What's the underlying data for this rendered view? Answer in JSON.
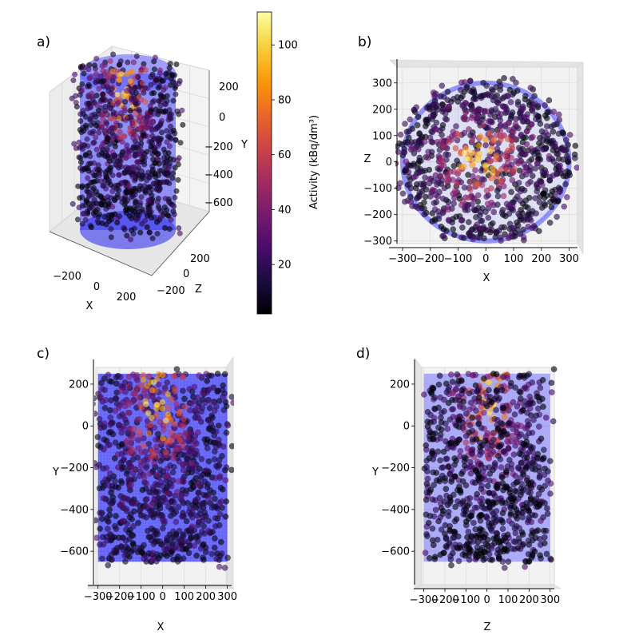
{
  "colors": {
    "cylinder": "#2f2fff",
    "pane": "#f2f2f2",
    "grid": "#dcdcdc",
    "colormap": [
      "#000004",
      "#1b0c41",
      "#4a0c6b",
      "#781c6d",
      "#a52c60",
      "#cf4446",
      "#ed6925",
      "#fb9b06",
      "#f7d13d",
      "#fcffa4"
    ]
  },
  "colorbar": {
    "label": "Activity (kBq/dm³)",
    "range": [
      2,
      112
    ],
    "ticks": [
      "20",
      "40",
      "60",
      "80",
      "100"
    ],
    "tick_values": [
      20,
      40,
      60,
      80,
      100
    ]
  },
  "chart_data": [
    {
      "type": "scatter",
      "panel": "a)",
      "view": "3d-perspective",
      "xlabel": "X",
      "ylabel": "Y",
      "zlabel": "Z",
      "x_ticks": [
        "−200",
        "0",
        "200"
      ],
      "y_ticks": [
        "200",
        "0",
        "−200",
        "−400",
        "−600"
      ],
      "z_ticks": [
        "200",
        "0",
        "−200"
      ]
    },
    {
      "type": "scatter",
      "panel": "b)",
      "view": "projection X–Z",
      "xlabel": "X",
      "ylabel": "Z",
      "xlim": [
        -320,
        330
      ],
      "ylim": [
        -310,
        360
      ],
      "x_ticks": [
        "−300",
        "−200",
        "−100",
        "0",
        "100",
        "200",
        "300"
      ],
      "x_tick_values": [
        -300,
        -200,
        -100,
        0,
        100,
        200,
        300
      ],
      "y_ticks": [
        "300",
        "200",
        "100",
        "0",
        "−100",
        "−200",
        "−300"
      ],
      "y_tick_values": [
        300,
        200,
        100,
        0,
        -100,
        -200,
        -300
      ],
      "cylinder_radius": 300
    },
    {
      "type": "scatter",
      "panel": "c)",
      "view": "projection X–Y",
      "xlabel": "X",
      "ylabel": "Y",
      "xlim": [
        -310,
        320
      ],
      "ylim": [
        -760,
        280
      ],
      "x_ticks": [
        "−300",
        "−200",
        "−100",
        "0",
        "100",
        "200",
        "300"
      ],
      "x_tick_values": [
        -300,
        -200,
        -100,
        0,
        100,
        200,
        300
      ],
      "y_ticks": [
        "200",
        "0",
        "−200",
        "−400",
        "−600"
      ],
      "y_tick_values": [
        200,
        0,
        -200,
        -400,
        -600
      ],
      "cylinder_x": [
        -300,
        300
      ],
      "cylinder_y": [
        -650,
        250
      ]
    },
    {
      "type": "scatter",
      "panel": "d)",
      "view": "projection Z–Y",
      "xlabel": "Z",
      "ylabel": "Y",
      "xlim": [
        -310,
        320
      ],
      "ylim": [
        -760,
        280
      ],
      "x_ticks": [
        "−300",
        "−200",
        "−100",
        "0",
        "100",
        "200",
        "300"
      ],
      "x_tick_values": [
        -300,
        -200,
        -100,
        0,
        100,
        200,
        300
      ],
      "y_ticks": [
        "200",
        "0",
        "−200",
        "−400",
        "−600"
      ],
      "y_tick_values": [
        200,
        0,
        -200,
        -400,
        -600
      ],
      "cylinder_x": [
        -300,
        300
      ],
      "cylinder_y": [
        -650,
        250
      ]
    }
  ]
}
